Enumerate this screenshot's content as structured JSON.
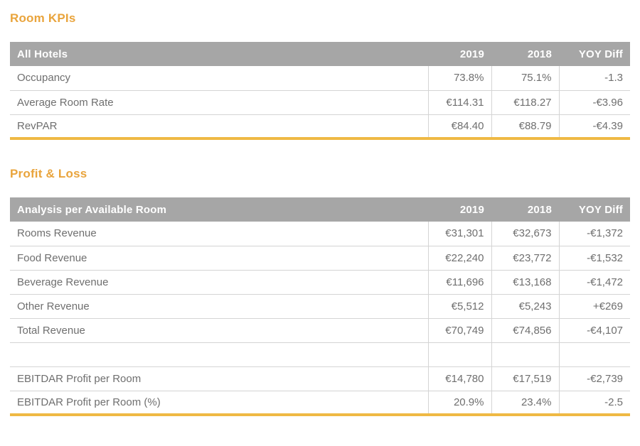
{
  "colors": {
    "accent_title": "#E9A43C",
    "accent_bottom_border": "#EFB944",
    "table_header_bg": "#A6A6A6",
    "table_header_text": "#FFFFFF",
    "body_text": "#6F6F6F",
    "grid_line": "#D4D4D4",
    "page_bg": "#FFFFFF"
  },
  "sections": [
    {
      "title": "Room KPIs",
      "table": {
        "header": {
          "label": "All Hotels",
          "columns": [
            "2019",
            "2018",
            "YOY Diff"
          ]
        },
        "rows": [
          {
            "label": "Occupancy",
            "values": [
              "73.8%",
              "75.1%",
              "-1.3"
            ]
          },
          {
            "label": "Average Room Rate",
            "values": [
              "€114.31",
              "€118.27",
              "-€3.96"
            ]
          },
          {
            "label": "RevPAR",
            "values": [
              "€84.40",
              "€88.79",
              "-€4.39"
            ]
          }
        ]
      }
    },
    {
      "title": "Profit & Loss",
      "table": {
        "header": {
          "label": "Analysis per Available Room",
          "columns": [
            "2019",
            "2018",
            "YOY Diff"
          ]
        },
        "rows": [
          {
            "label": "Rooms Revenue",
            "values": [
              "€31,301",
              "€32,673",
              "-€1,372"
            ]
          },
          {
            "label": "Food Revenue",
            "values": [
              "€22,240",
              "€23,772",
              "-€1,532"
            ]
          },
          {
            "label": "Beverage Revenue",
            "values": [
              "€11,696",
              "€13,168",
              "-€1,472"
            ]
          },
          {
            "label": "Other Revenue",
            "values": [
              "€5,512",
              "€5,243",
              "+€269"
            ]
          },
          {
            "label": "Total Revenue",
            "values": [
              "€70,749",
              "€74,856",
              "-€4,107"
            ]
          },
          {
            "label": "",
            "values": [
              "",
              "",
              ""
            ]
          },
          {
            "label": "EBITDAR Profit per Room",
            "values": [
              "€14,780",
              "€17,519",
              "-€2,739"
            ]
          },
          {
            "label": "EBITDAR Profit per Room (%)",
            "values": [
              "20.9%",
              "23.4%",
              "-2.5"
            ]
          }
        ]
      }
    }
  ]
}
